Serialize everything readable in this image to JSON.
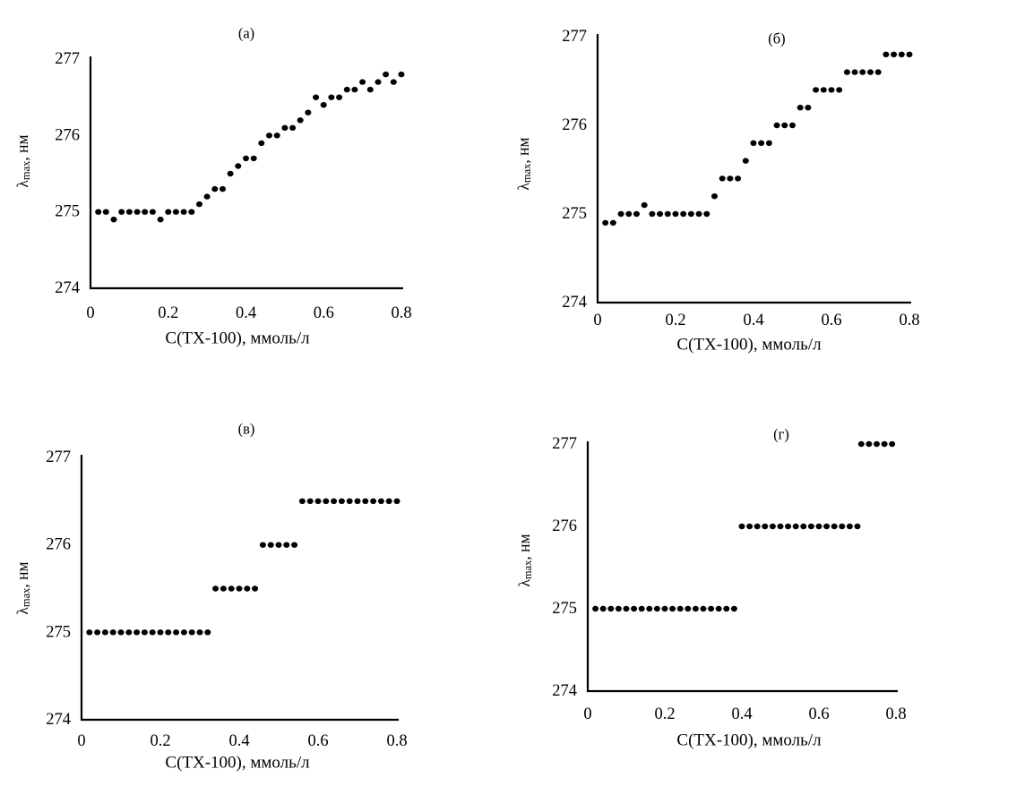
{
  "figure": {
    "background_color": "#ffffff",
    "axis_color": "#000000",
    "marker_color": "#000000"
  },
  "chart_data": [
    {
      "id": "a",
      "type": "scatter",
      "title": "(а)",
      "xlabel": "C(TX-100),  ммоль/л",
      "ylabel": "λmax, нм",
      "ylabel_parts": {
        "symbol": "λ",
        "sub": "max",
        "unit": ", нм"
      },
      "xlim": [
        0,
        0.8
      ],
      "ylim": [
        274,
        277
      ],
      "xticks": [
        0,
        0.2,
        0.4,
        0.6,
        0.8
      ],
      "xtick_labels": [
        "0",
        "0.2",
        "0.4",
        "0.6",
        "0.8"
      ],
      "yticks": [
        274,
        275,
        276,
        277
      ],
      "ytick_labels": [
        "274",
        "275",
        "276",
        "277"
      ],
      "grid": false,
      "legend": null,
      "points": [
        [
          0.02,
          275
        ],
        [
          0.04,
          275
        ],
        [
          0.06,
          274.9
        ],
        [
          0.08,
          275
        ],
        [
          0.1,
          275
        ],
        [
          0.12,
          275
        ],
        [
          0.14,
          275
        ],
        [
          0.16,
          275
        ],
        [
          0.18,
          274.9
        ],
        [
          0.2,
          275
        ],
        [
          0.22,
          275
        ],
        [
          0.24,
          275
        ],
        [
          0.26,
          275
        ],
        [
          0.28,
          275.1
        ],
        [
          0.3,
          275.2
        ],
        [
          0.32,
          275.3
        ],
        [
          0.34,
          275.3
        ],
        [
          0.36,
          275.5
        ],
        [
          0.38,
          275.6
        ],
        [
          0.4,
          275.7
        ],
        [
          0.42,
          275.7
        ],
        [
          0.44,
          275.9
        ],
        [
          0.46,
          276
        ],
        [
          0.48,
          276
        ],
        [
          0.5,
          276.1
        ],
        [
          0.52,
          276.1
        ],
        [
          0.54,
          276.2
        ],
        [
          0.56,
          276.3
        ],
        [
          0.58,
          276.5
        ],
        [
          0.6,
          276.4
        ],
        [
          0.62,
          276.5
        ],
        [
          0.64,
          276.5
        ],
        [
          0.66,
          276.6
        ],
        [
          0.68,
          276.6
        ],
        [
          0.7,
          276.7
        ],
        [
          0.72,
          276.6
        ],
        [
          0.74,
          276.7
        ],
        [
          0.76,
          276.8
        ],
        [
          0.78,
          276.7
        ],
        [
          0.8,
          276.8
        ]
      ]
    },
    {
      "id": "b",
      "type": "scatter",
      "title": "(б)",
      "xlabel": "C(TX-100),  ммоль/л",
      "ylabel": "λmax, нм",
      "ylabel_parts": {
        "symbol": "λ",
        "sub": "max",
        "unit": ", нм"
      },
      "xlim": [
        0,
        0.8
      ],
      "ylim": [
        274,
        277
      ],
      "xticks": [
        0,
        0.2,
        0.4,
        0.6,
        0.8
      ],
      "xtick_labels": [
        "0",
        "0.2",
        "0.4",
        "0.6",
        "0.8"
      ],
      "yticks": [
        274,
        275,
        276,
        277
      ],
      "ytick_labels": [
        "274",
        "275",
        "276",
        "277"
      ],
      "grid": false,
      "legend": null,
      "points": [
        [
          0.02,
          274.9
        ],
        [
          0.04,
          274.9
        ],
        [
          0.06,
          275
        ],
        [
          0.08,
          275
        ],
        [
          0.1,
          275
        ],
        [
          0.12,
          275.1
        ],
        [
          0.14,
          275
        ],
        [
          0.16,
          275
        ],
        [
          0.18,
          275
        ],
        [
          0.2,
          275
        ],
        [
          0.22,
          275
        ],
        [
          0.24,
          275
        ],
        [
          0.26,
          275
        ],
        [
          0.28,
          275
        ],
        [
          0.3,
          275.2
        ],
        [
          0.32,
          275.4
        ],
        [
          0.34,
          275.4
        ],
        [
          0.36,
          275.4
        ],
        [
          0.38,
          275.6
        ],
        [
          0.4,
          275.8
        ],
        [
          0.42,
          275.8
        ],
        [
          0.44,
          275.8
        ],
        [
          0.46,
          276
        ],
        [
          0.48,
          276
        ],
        [
          0.5,
          276
        ],
        [
          0.52,
          276.2
        ],
        [
          0.54,
          276.2
        ],
        [
          0.56,
          276.4
        ],
        [
          0.58,
          276.4
        ],
        [
          0.6,
          276.4
        ],
        [
          0.62,
          276.4
        ],
        [
          0.64,
          276.6
        ],
        [
          0.66,
          276.6
        ],
        [
          0.68,
          276.6
        ],
        [
          0.7,
          276.6
        ],
        [
          0.72,
          276.6
        ],
        [
          0.74,
          276.8
        ],
        [
          0.76,
          276.8
        ],
        [
          0.78,
          276.8
        ],
        [
          0.8,
          276.8
        ]
      ]
    },
    {
      "id": "v",
      "type": "scatter",
      "title": "(в)",
      "xlabel": "C(TX-100),  ммоль/л",
      "ylabel": "λmax, нм",
      "ylabel_parts": {
        "symbol": "λ",
        "sub": "max",
        "unit": ", нм"
      },
      "xlim": [
        0,
        0.8
      ],
      "ylim": [
        274,
        277
      ],
      "xticks": [
        0,
        0.2,
        0.4,
        0.6,
        0.8
      ],
      "xtick_labels": [
        "0",
        "0.2",
        "0.4",
        "0.6",
        "0.8"
      ],
      "yticks": [
        274,
        275,
        276,
        277
      ],
      "ytick_labels": [
        "274",
        "275",
        "276",
        "277"
      ],
      "grid": false,
      "legend": null,
      "points": [
        [
          0.02,
          275
        ],
        [
          0.04,
          275
        ],
        [
          0.06,
          275
        ],
        [
          0.08,
          275
        ],
        [
          0.1,
          275
        ],
        [
          0.12,
          275
        ],
        [
          0.14,
          275
        ],
        [
          0.16,
          275
        ],
        [
          0.18,
          275
        ],
        [
          0.2,
          275
        ],
        [
          0.22,
          275
        ],
        [
          0.24,
          275
        ],
        [
          0.26,
          275
        ],
        [
          0.28,
          275
        ],
        [
          0.3,
          275
        ],
        [
          0.32,
          275
        ],
        [
          0.34,
          275.5
        ],
        [
          0.36,
          275.5
        ],
        [
          0.38,
          275.5
        ],
        [
          0.4,
          275.5
        ],
        [
          0.42,
          275.5
        ],
        [
          0.44,
          275.5
        ],
        [
          0.46,
          276
        ],
        [
          0.48,
          276
        ],
        [
          0.5,
          276
        ],
        [
          0.52,
          276
        ],
        [
          0.54,
          276
        ],
        [
          0.56,
          276.5
        ],
        [
          0.58,
          276.5
        ],
        [
          0.6,
          276.5
        ],
        [
          0.62,
          276.5
        ],
        [
          0.64,
          276.5
        ],
        [
          0.66,
          276.5
        ],
        [
          0.68,
          276.5
        ],
        [
          0.7,
          276.5
        ],
        [
          0.72,
          276.5
        ],
        [
          0.74,
          276.5
        ],
        [
          0.76,
          276.5
        ],
        [
          0.78,
          276.5
        ],
        [
          0.8,
          276.5
        ]
      ]
    },
    {
      "id": "g",
      "type": "scatter",
      "title": "(г)",
      "xlabel": "C(TX-100),  ммоль/л",
      "ylabel": "λmax, нм",
      "ylabel_parts": {
        "symbol": "λ",
        "sub": "max",
        "unit": ", нм"
      },
      "xlim": [
        0,
        0.8
      ],
      "ylim": [
        274,
        277
      ],
      "xticks": [
        0,
        0.2,
        0.4,
        0.6,
        0.8
      ],
      "xtick_labels": [
        "0",
        "0.2",
        "0.4",
        "0.6",
        "0.8"
      ],
      "yticks": [
        274,
        275,
        276,
        277
      ],
      "ytick_labels": [
        "274",
        "275",
        "276",
        "277"
      ],
      "grid": false,
      "legend": null,
      "points": [
        [
          0.02,
          275
        ],
        [
          0.04,
          275
        ],
        [
          0.06,
          275
        ],
        [
          0.08,
          275
        ],
        [
          0.1,
          275
        ],
        [
          0.12,
          275
        ],
        [
          0.14,
          275
        ],
        [
          0.16,
          275
        ],
        [
          0.18,
          275
        ],
        [
          0.2,
          275
        ],
        [
          0.22,
          275
        ],
        [
          0.24,
          275
        ],
        [
          0.26,
          275
        ],
        [
          0.28,
          275
        ],
        [
          0.3,
          275
        ],
        [
          0.32,
          275
        ],
        [
          0.34,
          275
        ],
        [
          0.36,
          275
        ],
        [
          0.38,
          275
        ],
        [
          0.4,
          276
        ],
        [
          0.42,
          276
        ],
        [
          0.44,
          276
        ],
        [
          0.46,
          276
        ],
        [
          0.48,
          276
        ],
        [
          0.5,
          276
        ],
        [
          0.52,
          276
        ],
        [
          0.54,
          276
        ],
        [
          0.56,
          276
        ],
        [
          0.58,
          276
        ],
        [
          0.6,
          276
        ],
        [
          0.62,
          276
        ],
        [
          0.64,
          276
        ],
        [
          0.66,
          276
        ],
        [
          0.68,
          276
        ],
        [
          0.7,
          276
        ],
        [
          0.71,
          277
        ],
        [
          0.73,
          277
        ],
        [
          0.75,
          277
        ],
        [
          0.77,
          277
        ],
        [
          0.79,
          277
        ]
      ]
    }
  ]
}
